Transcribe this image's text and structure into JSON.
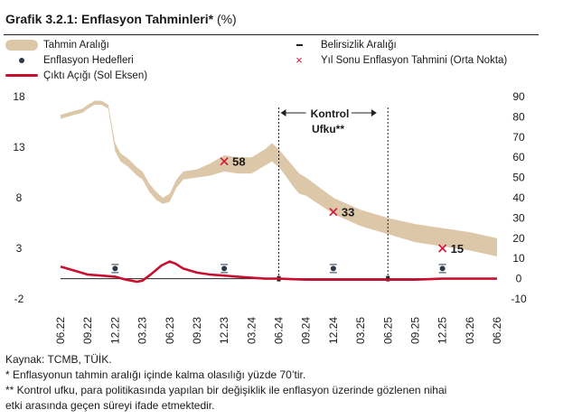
{
  "header": {
    "title_bold": "Grafik 3.2.1: Enflasyon Tahminleri*",
    "title_unit": "(%)"
  },
  "legend": {
    "range": "Tahmin Aralığı",
    "uncertainty": "Belirsizlik Aralığı",
    "targets": "Enflasyon Hedefleri",
    "year_end": "Yıl Sonu Enflasyon Tahmini (Orta Nokta)",
    "output_gap": "Çıktı Açığı (Sol Eksen)"
  },
  "annotation": {
    "line1": "Kontrol",
    "line2": "Ufku**"
  },
  "notes": {
    "source": "Kaynak: TCMB, TÜİK.",
    "footnote1": "* Enflasyonun tahmin aralığı içinde kalma olasılığı yüzde 70’tir.",
    "footnote2a": "** Kontrol ufku, para politikasında yapılan bir değişiklik ile enflasyon üzerinde gözlenen nihai",
    "footnote2b": "etki arasında geçen süreyi ifade etmektedir."
  },
  "colors": {
    "band": "#dcc7a8",
    "output_gap": "#c8102e",
    "marker_x": "#d4143a",
    "target_dot": "#2a3a4a"
  },
  "chart_data": {
    "type": "area",
    "x_tick_labels": [
      "06.22",
      "09.22",
      "12.22",
      "03.23",
      "06.23",
      "09.23",
      "12.23",
      "03.24",
      "06.24",
      "09.24",
      "12.24",
      "03.25",
      "06.25",
      "09.25",
      "12.25",
      "03.26",
      "06.26"
    ],
    "left_axis": {
      "ticks": [
        "-2",
        "3",
        "8",
        "13",
        "18"
      ],
      "range": [
        -2,
        18
      ]
    },
    "right_axis": {
      "ticks": [
        "-10",
        "0",
        "10",
        "20",
        "30",
        "40",
        "50",
        "60",
        "70",
        "80",
        "90"
      ],
      "range": [
        -10,
        90
      ]
    },
    "series": [
      {
        "name": "Tahmin Aralığı",
        "axis": "right",
        "kind": "band",
        "x": [
          0,
          0.25,
          0.5,
          0.8,
          1,
          1.25,
          1.5,
          1.75,
          2,
          2.2,
          2.5,
          2.8,
          3,
          3.25,
          3.5,
          3.75,
          4,
          4.25,
          4.5,
          5,
          5.5,
          6,
          6.5,
          7,
          7.5,
          7.75,
          8,
          8.25,
          8.5,
          8.75,
          9,
          10,
          11,
          12,
          13,
          14,
          15,
          16
        ],
        "upper": [
          81,
          82,
          83,
          84,
          86,
          88,
          88,
          86,
          67,
          62,
          59,
          55,
          53,
          47,
          43,
          40,
          42,
          49,
          53,
          54,
          57,
          61,
          60,
          60,
          64,
          67,
          64,
          60,
          56,
          52,
          50,
          40,
          34,
          30,
          27,
          25,
          23,
          20
        ],
        "lower": [
          79,
          80,
          81,
          82,
          84,
          86,
          86,
          84,
          63,
          58,
          55,
          51,
          49,
          43,
          39,
          37,
          38,
          45,
          49,
          50,
          51,
          53,
          52,
          52,
          56,
          58,
          55,
          51,
          46,
          42,
          41,
          32,
          26,
          22,
          18,
          16,
          14,
          11
        ]
      },
      {
        "name": "Çıktı Açığı (Sol Eksen)",
        "axis": "left",
        "kind": "line",
        "x": [
          0,
          0.5,
          1,
          1.5,
          2,
          2.4,
          2.8,
          3,
          3.3,
          3.7,
          4,
          4.2,
          4.5,
          5,
          5.5,
          6,
          6.5,
          7,
          7.5,
          8,
          9,
          10,
          11,
          12,
          13,
          14,
          15,
          16
        ],
        "y": [
          1.2,
          0.8,
          0.4,
          0.3,
          0.2,
          -0.1,
          -0.3,
          -0.2,
          0.4,
          1.3,
          1.7,
          1.5,
          1.0,
          0.6,
          0.4,
          0.3,
          0.2,
          0.1,
          0,
          0,
          -0.1,
          -0.1,
          -0.1,
          -0.1,
          -0.1,
          0,
          0,
          0
        ]
      }
    ],
    "inflation_targets": {
      "axis": "right",
      "x": [
        2,
        6,
        10,
        14
      ],
      "values": [
        5,
        5,
        5,
        5
      ]
    },
    "year_end_forecasts": {
      "axis": "right",
      "x": [
        6,
        10,
        14
      ],
      "values": [
        58,
        33,
        15
      ],
      "labels": [
        "58",
        "33",
        "15"
      ]
    },
    "uncertainty_boundaries": {
      "x": [
        8,
        12
      ]
    },
    "grid": false
  }
}
